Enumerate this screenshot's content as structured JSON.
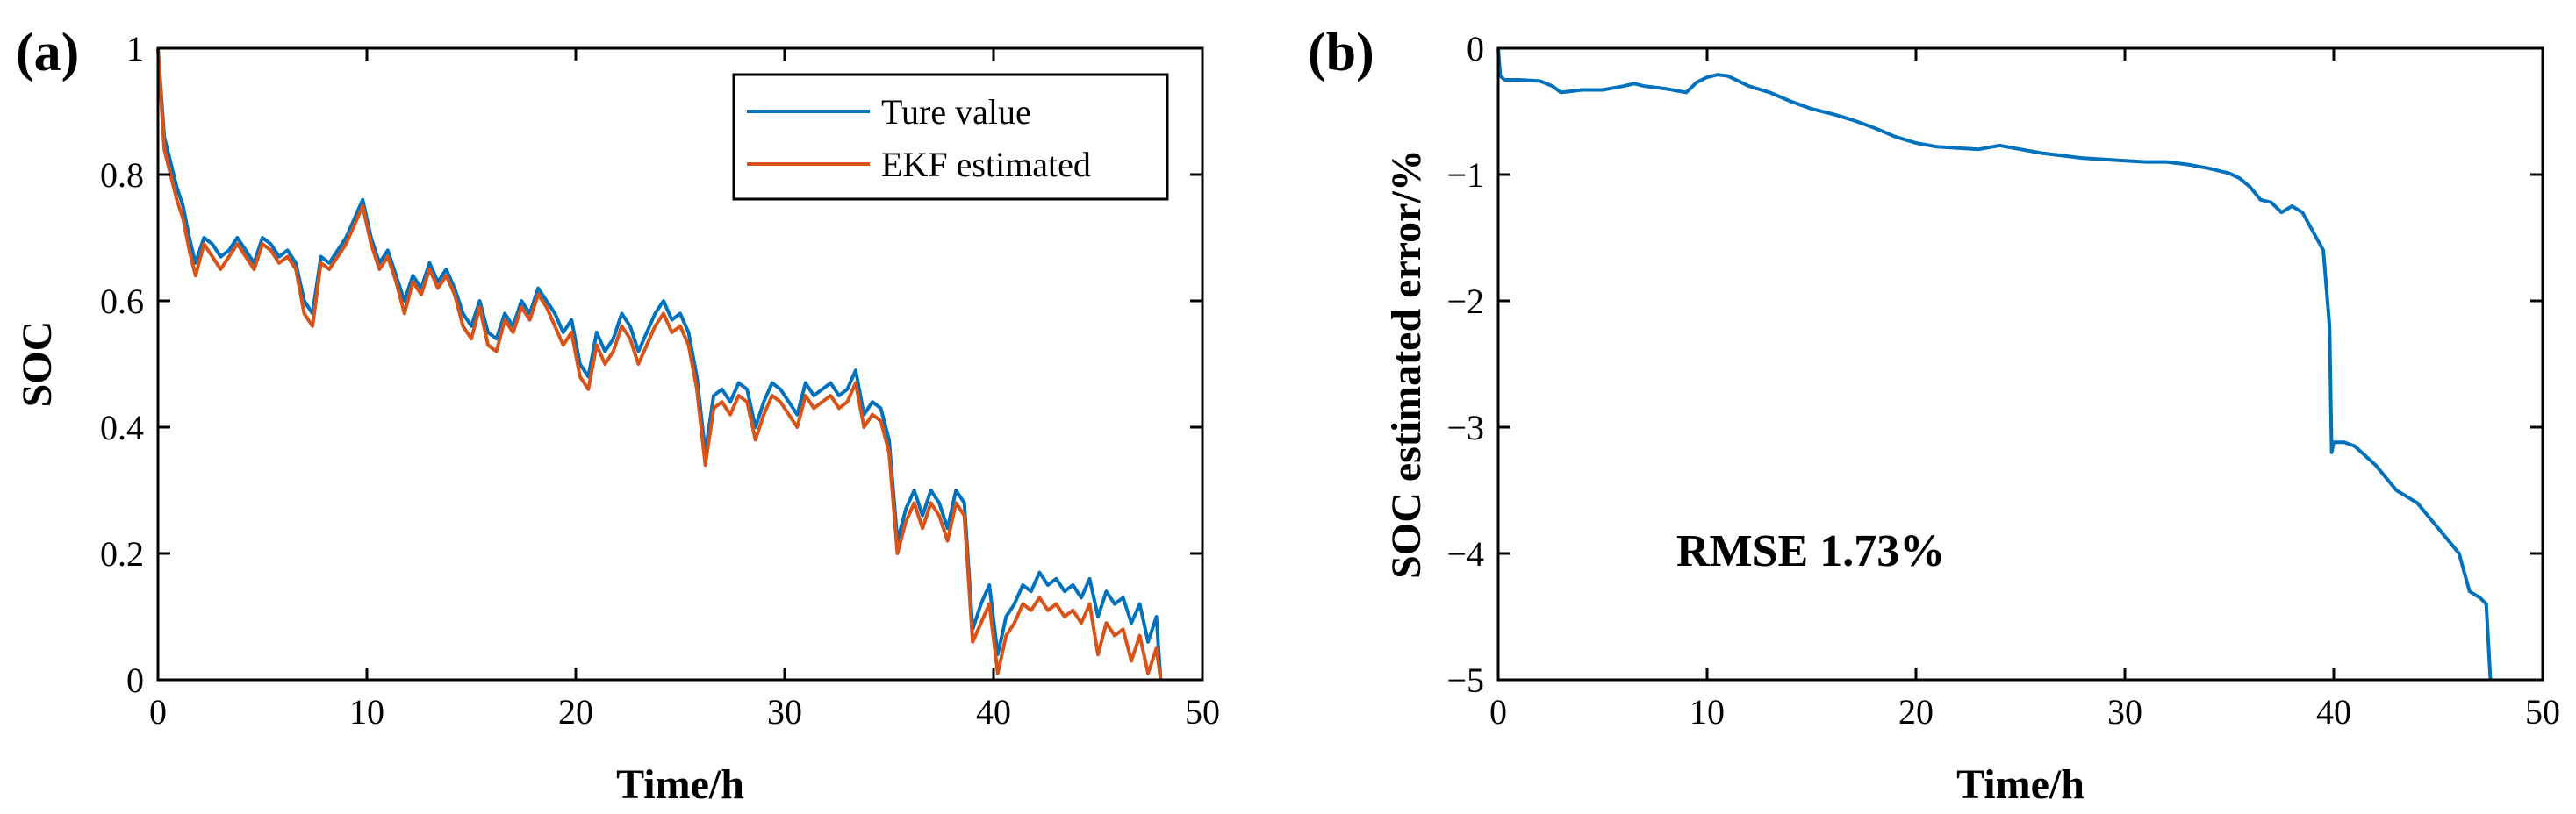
{
  "chart_data": [
    {
      "type": "line",
      "panel_label": "(a)",
      "title": "",
      "xlabel": "Time/h",
      "ylabel": "SOC",
      "xlim": [
        0,
        50
      ],
      "ylim": [
        0,
        1
      ],
      "xticks": [
        0,
        10,
        20,
        30,
        40,
        50
      ],
      "yticks": [
        0,
        0.2,
        0.4,
        0.6,
        0.8,
        1
      ],
      "ytick_labels": [
        "0",
        "0.2",
        "0.4",
        "0.6",
        "0.8",
        "1"
      ],
      "legend_position": "top-right",
      "series": [
        {
          "name": "Ture value",
          "color": "#0072BD",
          "x": [
            0,
            0.3,
            0.6,
            0.9,
            1.2,
            1.5,
            1.8,
            2.2,
            2.6,
            3.0,
            3.4,
            3.8,
            4.2,
            4.6,
            5.0,
            5.4,
            5.8,
            6.2,
            6.6,
            7.0,
            7.4,
            7.8,
            8.2,
            8.6,
            9.0,
            9.4,
            9.8,
            10.2,
            10.6,
            11.0,
            11.4,
            11.8,
            12.2,
            12.6,
            13.0,
            13.4,
            13.8,
            14.2,
            14.6,
            15.0,
            15.4,
            15.8,
            16.2,
            16.6,
            17.0,
            17.4,
            17.8,
            18.2,
            18.6,
            19.0,
            19.4,
            19.8,
            20.2,
            20.6,
            21.0,
            21.4,
            21.8,
            22.2,
            22.6,
            23.0,
            23.4,
            23.8,
            24.2,
            24.6,
            25.0,
            25.4,
            25.8,
            26.2,
            26.6,
            27.0,
            27.4,
            27.8,
            28.2,
            28.6,
            29.0,
            29.4,
            29.8,
            30.2,
            30.6,
            31.0,
            31.4,
            31.8,
            32.2,
            32.6,
            33.0,
            33.4,
            33.8,
            34.2,
            34.6,
            35.0,
            35.4,
            35.8,
            36.2,
            36.6,
            37.0,
            37.4,
            37.8,
            38.2,
            38.6,
            39.0,
            39.4,
            39.8,
            40.2,
            40.6,
            41.0,
            41.4,
            41.8,
            42.2,
            42.6,
            43.0,
            43.4,
            43.8,
            44.2,
            44.6,
            45.0,
            45.4,
            45.8,
            46.2,
            46.6,
            47.0,
            47.4,
            47.8,
            48.0
          ],
          "values": [
            1.0,
            0.86,
            0.82,
            0.78,
            0.75,
            0.7,
            0.66,
            0.7,
            0.69,
            0.67,
            0.68,
            0.7,
            0.68,
            0.66,
            0.7,
            0.69,
            0.67,
            0.68,
            0.66,
            0.6,
            0.58,
            0.67,
            0.66,
            0.68,
            0.7,
            0.73,
            0.76,
            0.7,
            0.66,
            0.68,
            0.64,
            0.6,
            0.64,
            0.62,
            0.66,
            0.63,
            0.65,
            0.62,
            0.58,
            0.56,
            0.6,
            0.55,
            0.54,
            0.58,
            0.56,
            0.6,
            0.58,
            0.62,
            0.6,
            0.58,
            0.55,
            0.57,
            0.5,
            0.48,
            0.55,
            0.52,
            0.54,
            0.58,
            0.56,
            0.52,
            0.55,
            0.58,
            0.6,
            0.57,
            0.58,
            0.55,
            0.48,
            0.36,
            0.45,
            0.46,
            0.44,
            0.47,
            0.46,
            0.4,
            0.44,
            0.47,
            0.46,
            0.44,
            0.42,
            0.47,
            0.45,
            0.46,
            0.47,
            0.45,
            0.46,
            0.49,
            0.42,
            0.44,
            0.43,
            0.38,
            0.22,
            0.27,
            0.3,
            0.26,
            0.3,
            0.28,
            0.24,
            0.3,
            0.28,
            0.08,
            0.12,
            0.15,
            0.04,
            0.1,
            0.12,
            0.15,
            0.14,
            0.17,
            0.15,
            0.16,
            0.14,
            0.15,
            0.13,
            0.16,
            0.1,
            0.14,
            0.12,
            0.13,
            0.09,
            0.12,
            0.06,
            0.1,
            0.0
          ]
        },
        {
          "name": "EKF estimated",
          "color": "#D95319",
          "x": [
            0,
            0.3,
            0.6,
            0.9,
            1.2,
            1.5,
            1.8,
            2.2,
            2.6,
            3.0,
            3.4,
            3.8,
            4.2,
            4.6,
            5.0,
            5.4,
            5.8,
            6.2,
            6.6,
            7.0,
            7.4,
            7.8,
            8.2,
            8.6,
            9.0,
            9.4,
            9.8,
            10.2,
            10.6,
            11.0,
            11.4,
            11.8,
            12.2,
            12.6,
            13.0,
            13.4,
            13.8,
            14.2,
            14.6,
            15.0,
            15.4,
            15.8,
            16.2,
            16.6,
            17.0,
            17.4,
            17.8,
            18.2,
            18.6,
            19.0,
            19.4,
            19.8,
            20.2,
            20.6,
            21.0,
            21.4,
            21.8,
            22.2,
            22.6,
            23.0,
            23.4,
            23.8,
            24.2,
            24.6,
            25.0,
            25.4,
            25.8,
            26.2,
            26.6,
            27.0,
            27.4,
            27.8,
            28.2,
            28.6,
            29.0,
            29.4,
            29.8,
            30.2,
            30.6,
            31.0,
            31.4,
            31.8,
            32.2,
            32.6,
            33.0,
            33.4,
            33.8,
            34.2,
            34.6,
            35.0,
            35.4,
            35.8,
            36.2,
            36.6,
            37.0,
            37.4,
            37.8,
            38.2,
            38.6,
            39.0,
            39.4,
            39.8,
            40.2,
            40.6,
            41.0,
            41.4,
            41.8,
            42.2,
            42.6,
            43.0,
            43.4,
            43.8,
            44.2,
            44.6,
            45.0,
            45.4,
            45.8,
            46.2,
            46.6,
            47.0,
            47.4,
            47.8,
            48.0
          ],
          "values": [
            1.0,
            0.84,
            0.8,
            0.76,
            0.73,
            0.68,
            0.64,
            0.69,
            0.67,
            0.65,
            0.67,
            0.69,
            0.67,
            0.65,
            0.69,
            0.68,
            0.66,
            0.67,
            0.65,
            0.58,
            0.56,
            0.66,
            0.65,
            0.67,
            0.69,
            0.72,
            0.75,
            0.69,
            0.65,
            0.67,
            0.63,
            0.58,
            0.63,
            0.61,
            0.65,
            0.62,
            0.64,
            0.61,
            0.56,
            0.54,
            0.59,
            0.53,
            0.52,
            0.57,
            0.55,
            0.59,
            0.57,
            0.61,
            0.59,
            0.56,
            0.53,
            0.55,
            0.48,
            0.46,
            0.53,
            0.5,
            0.52,
            0.56,
            0.54,
            0.5,
            0.53,
            0.56,
            0.58,
            0.55,
            0.56,
            0.53,
            0.46,
            0.34,
            0.43,
            0.44,
            0.42,
            0.45,
            0.44,
            0.38,
            0.42,
            0.45,
            0.44,
            0.42,
            0.4,
            0.45,
            0.43,
            0.44,
            0.45,
            0.43,
            0.44,
            0.47,
            0.4,
            0.42,
            0.41,
            0.36,
            0.2,
            0.25,
            0.28,
            0.24,
            0.28,
            0.26,
            0.22,
            0.28,
            0.26,
            0.06,
            0.09,
            0.12,
            0.01,
            0.07,
            0.09,
            0.12,
            0.11,
            0.13,
            0.11,
            0.12,
            0.1,
            0.11,
            0.09,
            0.12,
            0.04,
            0.09,
            0.07,
            0.08,
            0.03,
            0.07,
            0.01,
            0.05,
            0.0
          ]
        }
      ]
    },
    {
      "type": "line",
      "panel_label": "(b)",
      "title": "",
      "xlabel": "Time/h",
      "ylabel": "SOC estimated error/%",
      "xlim": [
        0,
        50
      ],
      "ylim": [
        -5,
        0
      ],
      "xticks": [
        0,
        10,
        20,
        30,
        40,
        50
      ],
      "yticks": [
        -5,
        -4,
        -3,
        -2,
        -1,
        0
      ],
      "ytick_labels": [
        "−5",
        "−4",
        "−3",
        "−2",
        "−1",
        "0"
      ],
      "annotation": "RMSE 1.73%",
      "series": [
        {
          "name": "SOC estimated error",
          "color": "#0072BD",
          "x": [
            0,
            0.1,
            0.3,
            1.0,
            2.0,
            2.6,
            3.0,
            3.5,
            4.0,
            5.0,
            6.0,
            6.5,
            7.0,
            8.0,
            9.0,
            9.5,
            10.0,
            10.5,
            11.0,
            12.0,
            13.0,
            14.0,
            15.0,
            16.0,
            17.0,
            17.5,
            18.0,
            19.0,
            20.0,
            21.0,
            22.0,
            23.0,
            24.0,
            25.0,
            26.0,
            27.0,
            28.0,
            29.0,
            30.0,
            31.0,
            32.0,
            33.0,
            34.0,
            35.0,
            35.5,
            36.0,
            36.5,
            37.0,
            37.5,
            38.0,
            38.5,
            39.0,
            39.5,
            39.8,
            39.9,
            40.0,
            40.5,
            41.0,
            42.0,
            43.0,
            44.0,
            44.5,
            45.0,
            46.0,
            46.5,
            47.0,
            47.3,
            47.5
          ],
          "values": [
            0,
            -0.22,
            -0.25,
            -0.25,
            -0.26,
            -0.3,
            -0.35,
            -0.34,
            -0.33,
            -0.33,
            -0.3,
            -0.28,
            -0.3,
            -0.32,
            -0.35,
            -0.27,
            -0.23,
            -0.21,
            -0.22,
            -0.3,
            -0.35,
            -0.42,
            -0.48,
            -0.52,
            -0.57,
            -0.6,
            -0.63,
            -0.7,
            -0.75,
            -0.78,
            -0.79,
            -0.8,
            -0.77,
            -0.8,
            -0.83,
            -0.85,
            -0.87,
            -0.88,
            -0.89,
            -0.9,
            -0.9,
            -0.92,
            -0.95,
            -0.99,
            -1.03,
            -1.1,
            -1.2,
            -1.22,
            -1.3,
            -1.25,
            -1.3,
            -1.45,
            -1.6,
            -2.2,
            -3.2,
            -3.12,
            -3.12,
            -3.15,
            -3.3,
            -3.5,
            -3.6,
            -3.7,
            -3.8,
            -4.0,
            -4.3,
            -4.35,
            -4.4,
            -5.0
          ]
        }
      ]
    }
  ]
}
